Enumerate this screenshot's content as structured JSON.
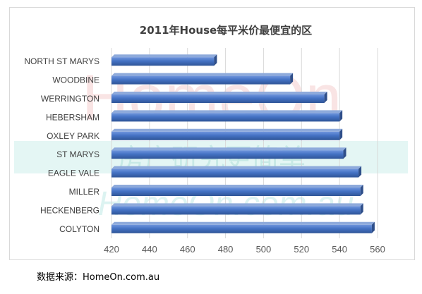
{
  "chart_data": {
    "type": "bar",
    "orientation": "horizontal",
    "title": "2011年House每平米价最便宜的区",
    "categories": [
      "NORTH ST MARYS",
      "WOODBINE",
      "WERRINGTON",
      "HEBERSHAM",
      "OXLEY PARK",
      "ST MARYS",
      "EAGLE VALE",
      "MILLER",
      "HECKENBERG",
      "COLYTON"
    ],
    "values": [
      474,
      514,
      532,
      540,
      540,
      542,
      550,
      551,
      551,
      557
    ],
    "xlim": [
      420,
      560
    ],
    "ticks": [
      420,
      440,
      460,
      480,
      500,
      520,
      540,
      560
    ],
    "bar_color": "#4472c4",
    "grid": true
  },
  "source": "数据来源：HomeOn.com.au",
  "watermark": {
    "line1": "HomeOn",
    "line2": "房产研究更简单",
    "line3": "HomeOn.com.au"
  }
}
